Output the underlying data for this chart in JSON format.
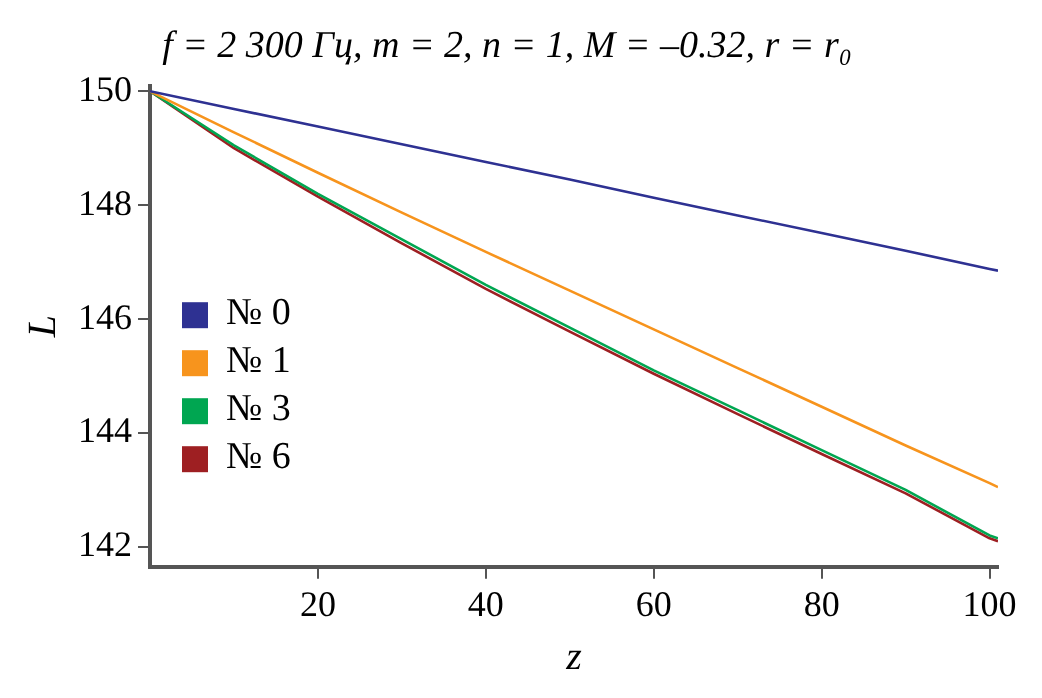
{
  "chart_data": {
    "type": "line",
    "title": "f = 2 300 Гц, m = 2, n = 1, M = –0.32, r = r₀",
    "xlabel": "z",
    "ylabel": "L",
    "x": [
      0,
      10,
      20,
      30,
      40,
      50,
      60,
      70,
      80,
      90,
      100,
      101
    ],
    "xlim": [
      0,
      101
    ],
    "xticks": [
      20,
      40,
      60,
      80,
      100
    ],
    "ylim": [
      141.65,
      150.1
    ],
    "yticks": [
      142,
      144,
      146,
      148,
      150
    ],
    "grid": false,
    "legend": "left",
    "marker": "none",
    "line_style": "solid",
    "series": [
      {
        "name": "№ 0",
        "color": "#2e3192",
        "values": [
          150,
          149.69,
          149.38,
          149.07,
          148.76,
          148.45,
          148.13,
          147.82,
          147.51,
          147.2,
          146.88,
          146.85
        ]
      },
      {
        "name": "№ 1",
        "color": "#f7941d",
        "values": [
          150,
          149.28,
          148.57,
          147.87,
          147.18,
          146.5,
          145.82,
          145.14,
          144.46,
          143.78,
          143.12,
          143.05
        ]
      },
      {
        "name": "№ 3",
        "color": "#00a651",
        "values": [
          150,
          149.05,
          148.2,
          147.4,
          146.6,
          145.85,
          145.1,
          144.4,
          143.7,
          143.0,
          142.2,
          142.15
        ]
      },
      {
        "name": "№ 6",
        "color": "#9e1f22",
        "values": [
          150,
          149.0,
          148.15,
          147.33,
          146.53,
          145.78,
          145.04,
          144.33,
          143.63,
          142.94,
          142.15,
          142.1
        ]
      }
    ]
  }
}
